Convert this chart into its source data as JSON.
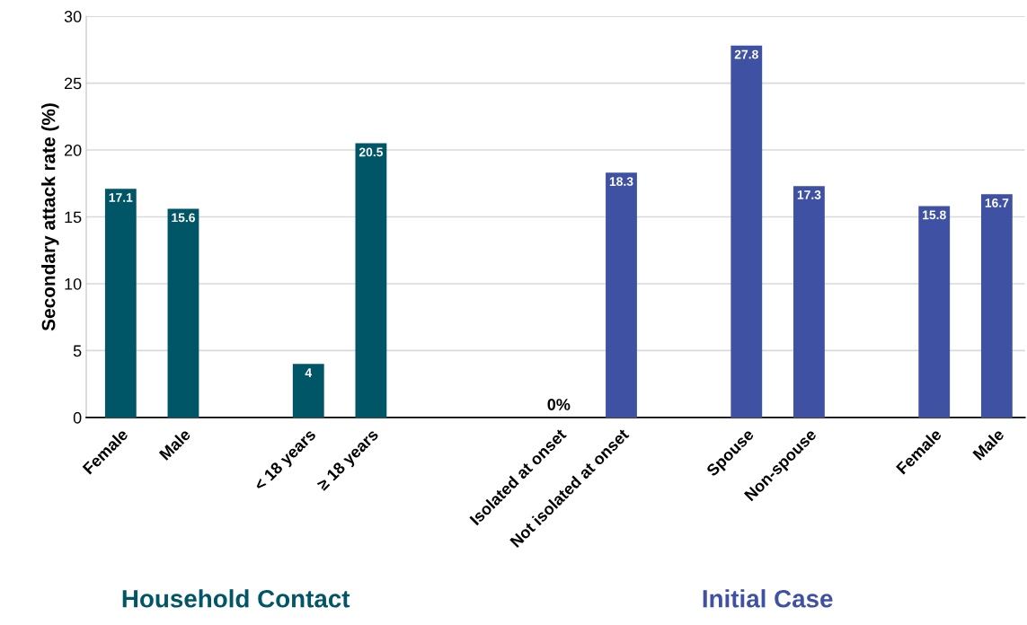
{
  "chart_data": {
    "type": "bar",
    "ylabel": "Secondary attack rate (%)",
    "categories": [
      "Female",
      "Male",
      null,
      "< 18 years",
      "≥ 18 years",
      null,
      null,
      "Isolated at onset",
      "Not isolated at onset",
      null,
      "Spouse",
      "Non-spouse",
      null,
      "Female",
      "Male"
    ],
    "values": [
      17.1,
      15.6,
      null,
      4,
      20.5,
      null,
      null,
      0,
      18.3,
      null,
      27.8,
      17.3,
      null,
      15.8,
      16.7
    ],
    "value_labels": [
      "17.1",
      "15.6",
      null,
      "4",
      "20.5",
      null,
      null,
      "0%",
      "18.3",
      null,
      "27.8",
      "17.3",
      null,
      "15.8",
      "16.7"
    ],
    "colors": [
      "#005566",
      "#005566",
      null,
      "#005566",
      "#005566",
      null,
      null,
      "#3f51a3",
      "#3f51a3",
      null,
      "#3f51a3",
      "#3f51a3",
      null,
      "#3f51a3",
      "#3f51a3"
    ],
    "ylim": [
      0,
      30
    ],
    "yticks": [
      0,
      5,
      10,
      15,
      20,
      25,
      30
    ],
    "grid": "y",
    "annotations": [
      "Household Contact",
      "Initial Case"
    ]
  }
}
